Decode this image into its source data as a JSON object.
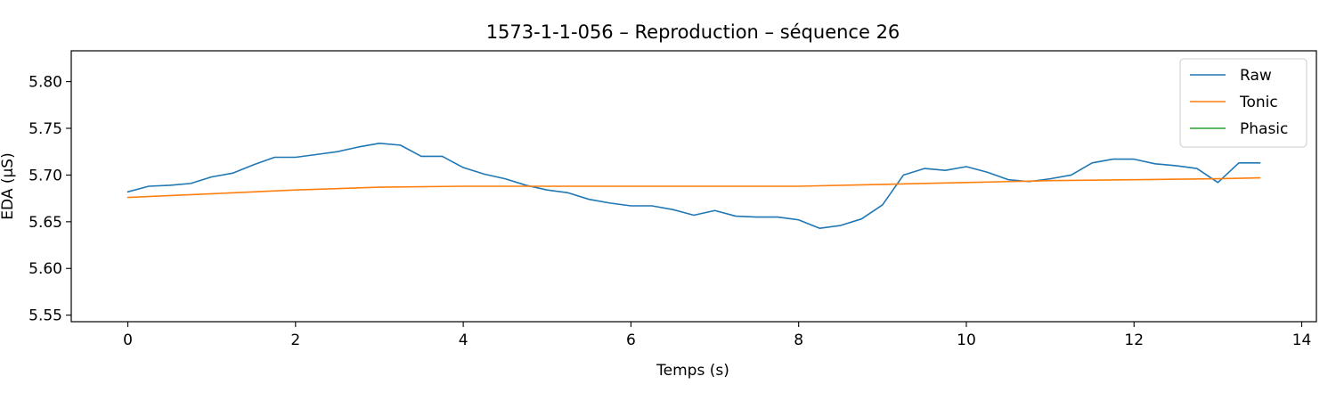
{
  "chart_data": {
    "type": "line",
    "title": "1573-1-1-056 – Reproduction – séquence 26",
    "xlabel": "Temps (s)",
    "ylabel": "EDA (µS)",
    "xlim": [
      -0.675,
      14.175
    ],
    "ylim": [
      5.543,
      5.833
    ],
    "xticks": [
      0,
      2,
      4,
      6,
      8,
      10,
      12,
      14
    ],
    "yticks": [
      5.55,
      5.6,
      5.65,
      5.7,
      5.75,
      5.8
    ],
    "xtick_labels": [
      "0",
      "2",
      "4",
      "6",
      "8",
      "10",
      "12",
      "14"
    ],
    "ytick_labels": [
      "5.55",
      "5.60",
      "5.65",
      "5.70",
      "5.75",
      "5.80"
    ],
    "grid": false,
    "legend_position": "top-right",
    "series": [
      {
        "name": "Raw",
        "color": "#1f77b4",
        "x": [
          0,
          0.25,
          0.5,
          0.75,
          1.0,
          1.25,
          1.5,
          1.75,
          2.0,
          2.25,
          2.5,
          2.75,
          3.0,
          3.25,
          3.5,
          3.75,
          4.0,
          4.25,
          4.5,
          4.75,
          5.0,
          5.25,
          5.5,
          5.75,
          6.0,
          6.25,
          6.5,
          6.75,
          7.0,
          7.25,
          7.5,
          7.75,
          8.0,
          8.25,
          8.5,
          8.75,
          9.0,
          9.25,
          9.5,
          9.75,
          10.0,
          10.25,
          10.5,
          10.75,
          11.0,
          11.25,
          11.5,
          11.75,
          12.0,
          12.25,
          12.5,
          12.75,
          13.0,
          13.25,
          13.5
        ],
        "values": [
          5.682,
          5.688,
          5.689,
          5.691,
          5.698,
          5.702,
          5.711,
          5.719,
          5.719,
          5.722,
          5.725,
          5.73,
          5.734,
          5.732,
          5.72,
          5.72,
          5.708,
          5.701,
          5.696,
          5.689,
          5.684,
          5.681,
          5.674,
          5.67,
          5.667,
          5.667,
          5.663,
          5.657,
          5.662,
          5.656,
          5.655,
          5.655,
          5.652,
          5.643,
          5.646,
          5.653,
          5.668,
          5.7,
          5.707,
          5.705,
          5.709,
          5.703,
          5.695,
          5.693,
          5.696,
          5.7,
          5.713,
          5.717,
          5.717,
          5.712,
          5.71,
          5.707,
          5.692,
          5.713,
          5.713
        ]
      },
      {
        "name": "Tonic",
        "color": "#ff7f0e",
        "x": [
          0,
          1,
          2,
          3,
          4,
          5,
          6,
          7,
          8,
          9,
          10,
          11,
          12,
          13,
          13.5
        ],
        "values": [
          5.676,
          5.68,
          5.684,
          5.687,
          5.688,
          5.688,
          5.688,
          5.688,
          5.688,
          5.69,
          5.692,
          5.694,
          5.695,
          5.696,
          5.697
        ]
      },
      {
        "name": "Phasic",
        "color": "#2ca02c",
        "x": [],
        "values": []
      }
    ]
  }
}
